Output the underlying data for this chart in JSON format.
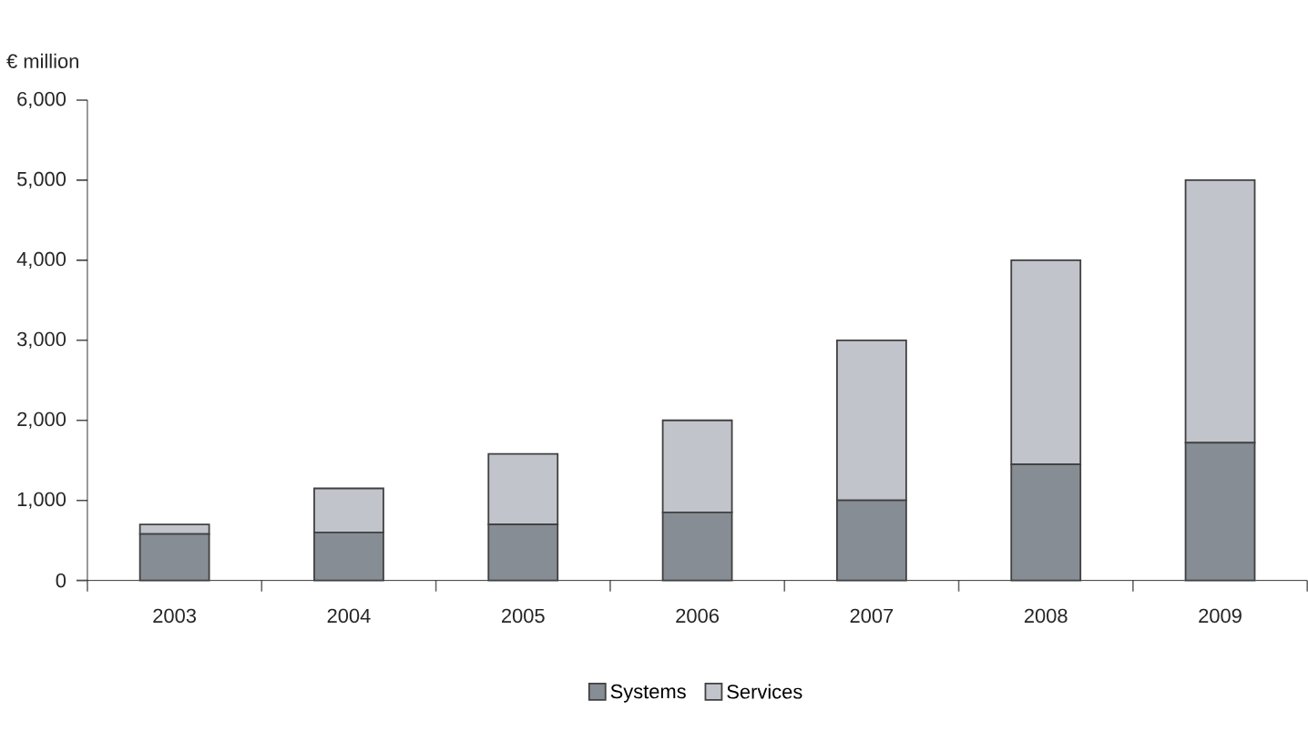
{
  "chart_data": {
    "type": "bar",
    "stacked": true,
    "ylabel": "€ million",
    "categories": [
      "2003",
      "2004",
      "2005",
      "2006",
      "2007",
      "2008",
      "2009"
    ],
    "series": [
      {
        "name": "Systems",
        "color": "#878d94",
        "values": [
          580,
          600,
          700,
          850,
          1000,
          1450,
          1720
        ]
      },
      {
        "name": "Services",
        "color": "#c2c4cc",
        "values": [
          120,
          550,
          880,
          1150,
          2000,
          2550,
          3280
        ]
      }
    ],
    "ylim": [
      0,
      6000
    ],
    "yticks": [
      {
        "value": 0,
        "label": "0"
      },
      {
        "value": 1000,
        "label": "1,000"
      },
      {
        "value": 2000,
        "label": "2,000"
      },
      {
        "value": 3000,
        "label": "3,000"
      },
      {
        "value": 4000,
        "label": "4,000"
      },
      {
        "value": 5000,
        "label": "5,000"
      },
      {
        "value": 6000,
        "label": "6,000"
      }
    ],
    "legend": "bottom",
    "grid": false
  }
}
